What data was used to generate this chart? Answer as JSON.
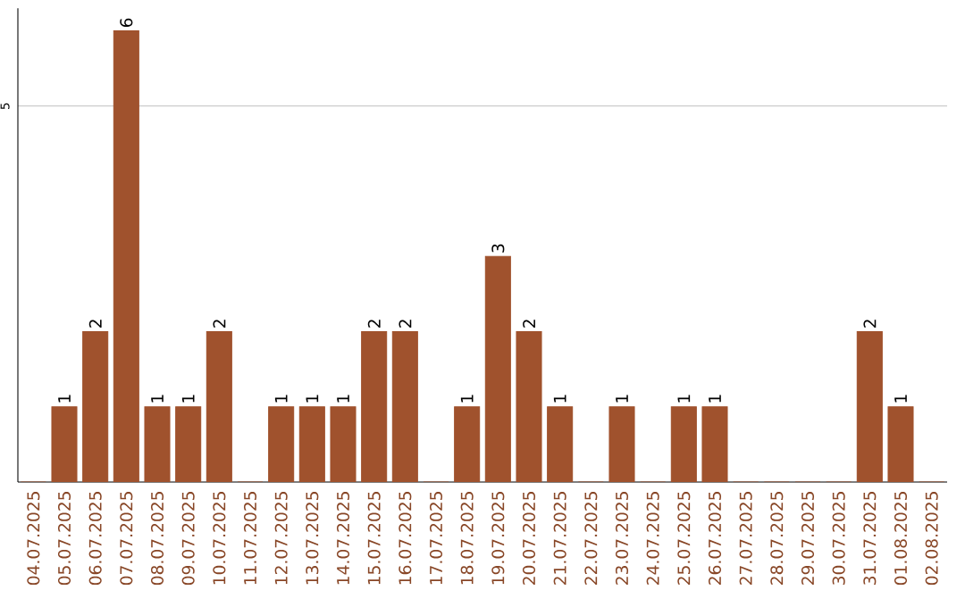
{
  "chart_data": {
    "type": "bar",
    "categories": [
      "04.07.2025",
      "05.07.2025",
      "06.07.2025",
      "07.07.2025",
      "08.07.2025",
      "09.07.2025",
      "10.07.2025",
      "11.07.2025",
      "12.07.2025",
      "13.07.2025",
      "14.07.2025",
      "15.07.2025",
      "16.07.2025",
      "17.07.2025",
      "18.07.2025",
      "19.07.2025",
      "20.07.2025",
      "21.07.2025",
      "22.07.2025",
      "23.07.2025",
      "24.07.2025",
      "25.07.2025",
      "26.07.2025",
      "27.07.2025",
      "28.07.2025",
      "29.07.2025",
      "30.07.2025",
      "31.07.2025",
      "01.08.2025",
      "02.08.2025"
    ],
    "values": [
      0,
      1,
      2,
      6,
      1,
      1,
      2,
      0,
      1,
      1,
      1,
      2,
      2,
      0,
      1,
      3,
      2,
      1,
      0,
      1,
      0,
      1,
      1,
      0,
      0,
      0,
      0,
      2,
      1,
      0
    ],
    "value_labels": [
      null,
      "1",
      "2",
      "6",
      "1",
      "1",
      "2",
      null,
      "1",
      "1",
      "1",
      "2",
      "2",
      null,
      "1",
      "3",
      "2",
      "1",
      null,
      "1",
      null,
      "1",
      "1",
      null,
      null,
      null,
      null,
      "2",
      "1",
      null
    ],
    "color": "#a0522d",
    "ylim": [
      0,
      6.3
    ],
    "yticks": [
      5
    ],
    "grid": "y"
  }
}
